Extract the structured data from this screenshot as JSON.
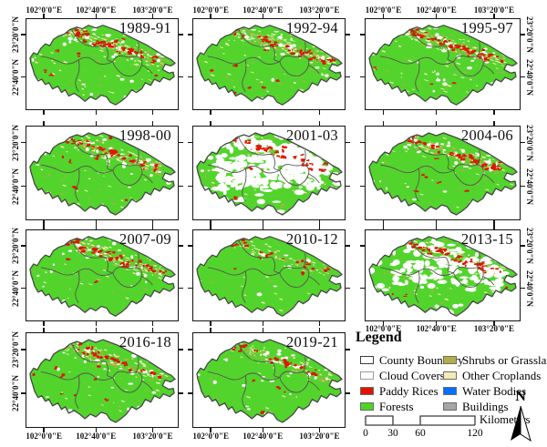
{
  "axis": {
    "lon_labels": [
      "102°0'0\"E",
      "102°40'0\"E",
      "103°20'0\"E"
    ],
    "lat_labels": [
      "23°20'0\"N",
      "22°40'0\"N"
    ]
  },
  "panels": [
    {
      "title": "1989-91",
      "cloud_cover": "light"
    },
    {
      "title": "1992-94",
      "cloud_cover": "light"
    },
    {
      "title": "1995-97",
      "cloud_cover": "light"
    },
    {
      "title": "1998-00",
      "cloud_cover": "light"
    },
    {
      "title": "2001-03",
      "cloud_cover": "heavy"
    },
    {
      "title": "2004-06",
      "cloud_cover": "light"
    },
    {
      "title": "2007-09",
      "cloud_cover": "light"
    },
    {
      "title": "2010-12",
      "cloud_cover": "minimal"
    },
    {
      "title": "2013-15",
      "cloud_cover": "moderate"
    },
    {
      "title": "2016-18",
      "cloud_cover": "light"
    },
    {
      "title": "2019-21",
      "cloud_cover": "light"
    }
  ],
  "legend": {
    "title": "Legend",
    "items": [
      {
        "label": "County Boundary",
        "color": "#FFFFFF",
        "border": "#3d3d3d"
      },
      {
        "label": "Cloud Covers",
        "color": "#FFFFFF",
        "border": "#9a9a9a"
      },
      {
        "label": "Paddy Rices",
        "color": "#E01400",
        "border": "#6b6b6b"
      },
      {
        "label": "Forests",
        "color": "#4CD622",
        "border": "#6b6b6b"
      },
      {
        "label": "Shrubs or Grasslands",
        "color": "#B3AD4A",
        "border": "#6b6b6b"
      },
      {
        "label": "Other Croplands",
        "color": "#F2EDB6",
        "border": "#6b6b6b"
      },
      {
        "label": "Water Bodies",
        "color": "#0070FF",
        "border": "#6b6b6b"
      },
      {
        "label": "Buildings",
        "color": "#A6A6A6",
        "border": "#6b6b6b"
      }
    ],
    "scalebar": {
      "ticks": [
        "0",
        "30",
        "60",
        "120"
      ],
      "unit": "Kilometers"
    },
    "north_label": "N"
  },
  "colors": {
    "forests": "#52D42C",
    "paddy_rices": "#E01400",
    "shrubs_grasslands": "#B3AD4A",
    "other_croplands": "#F2EDB6",
    "cloud_covers": "#FFFFFF",
    "county_boundary": "#474747"
  }
}
